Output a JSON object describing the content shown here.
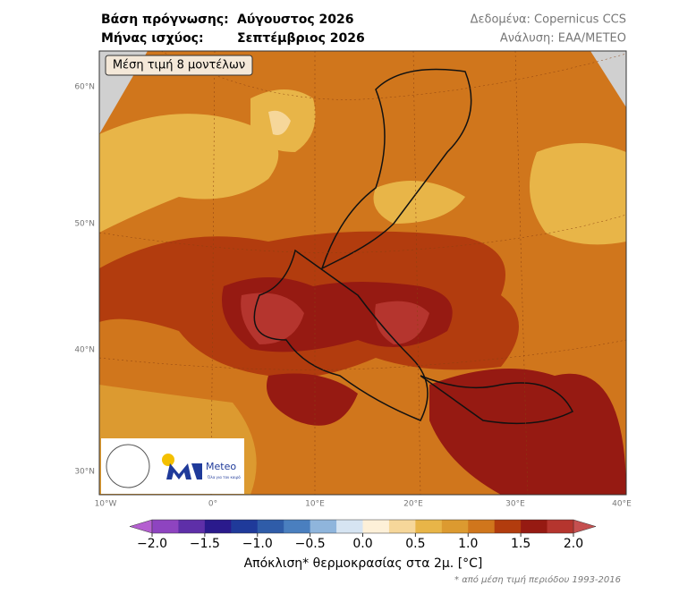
{
  "header": {
    "forecast_base_label": "Βάση πρόγνωσης:",
    "forecast_base_value": "Αύγουστος 2026",
    "valid_month_label": "Μήνας ισχύος:",
    "valid_month_value": "Σεπτέμβριος 2026",
    "data_source": "Δεδομένα: Copernicus CCS",
    "analysis": "Ανάλυση: ΕΑΑ/METEO"
  },
  "map": {
    "badge": "Μέση τιμή 8 μοντέλων",
    "lat_labels": [
      "60°N",
      "50°N",
      "40°N",
      "30°N"
    ],
    "lon_labels": [
      "10°W",
      "0°",
      "10°E",
      "20°E",
      "30°E",
      "40°E"
    ]
  },
  "logo": {
    "name": "Meteo",
    "tagline": "Όλα για τον καιρό"
  },
  "colorbar": {
    "range": [
      -2,
      2
    ],
    "ticks": [
      {
        "value": -2,
        "label": "−2.0"
      },
      {
        "value": -1.5,
        "label": "−1.5"
      },
      {
        "value": -1,
        "label": "−1.0"
      },
      {
        "value": -0.5,
        "label": "−0.5"
      },
      {
        "value": 0,
        "label": "0.0"
      },
      {
        "value": 0.5,
        "label": "0.5"
      },
      {
        "value": 1,
        "label": "1.0"
      },
      {
        "value": 1.5,
        "label": "1.5"
      },
      {
        "value": 2,
        "label": "2.0"
      }
    ],
    "under_color": "#b45fd0",
    "over_color": "#c55050",
    "colors": [
      "#8e44c0",
      "#5e2fa8",
      "#2a1a8c",
      "#1f3a9a",
      "#2f5ca8",
      "#4a7fbf",
      "#8fb5dc",
      "#d6e4f2",
      "#fdf0d8",
      "#f6d79a",
      "#e8b548",
      "#dc9a30",
      "#d0761c",
      "#b23c0e",
      "#961a12",
      "#b5352e"
    ],
    "label": "Απόκλιση* θερμοκρασίας στα 2μ. [°C]",
    "footnote": "* από μέση τιμή περιόδου 1993-2016"
  }
}
